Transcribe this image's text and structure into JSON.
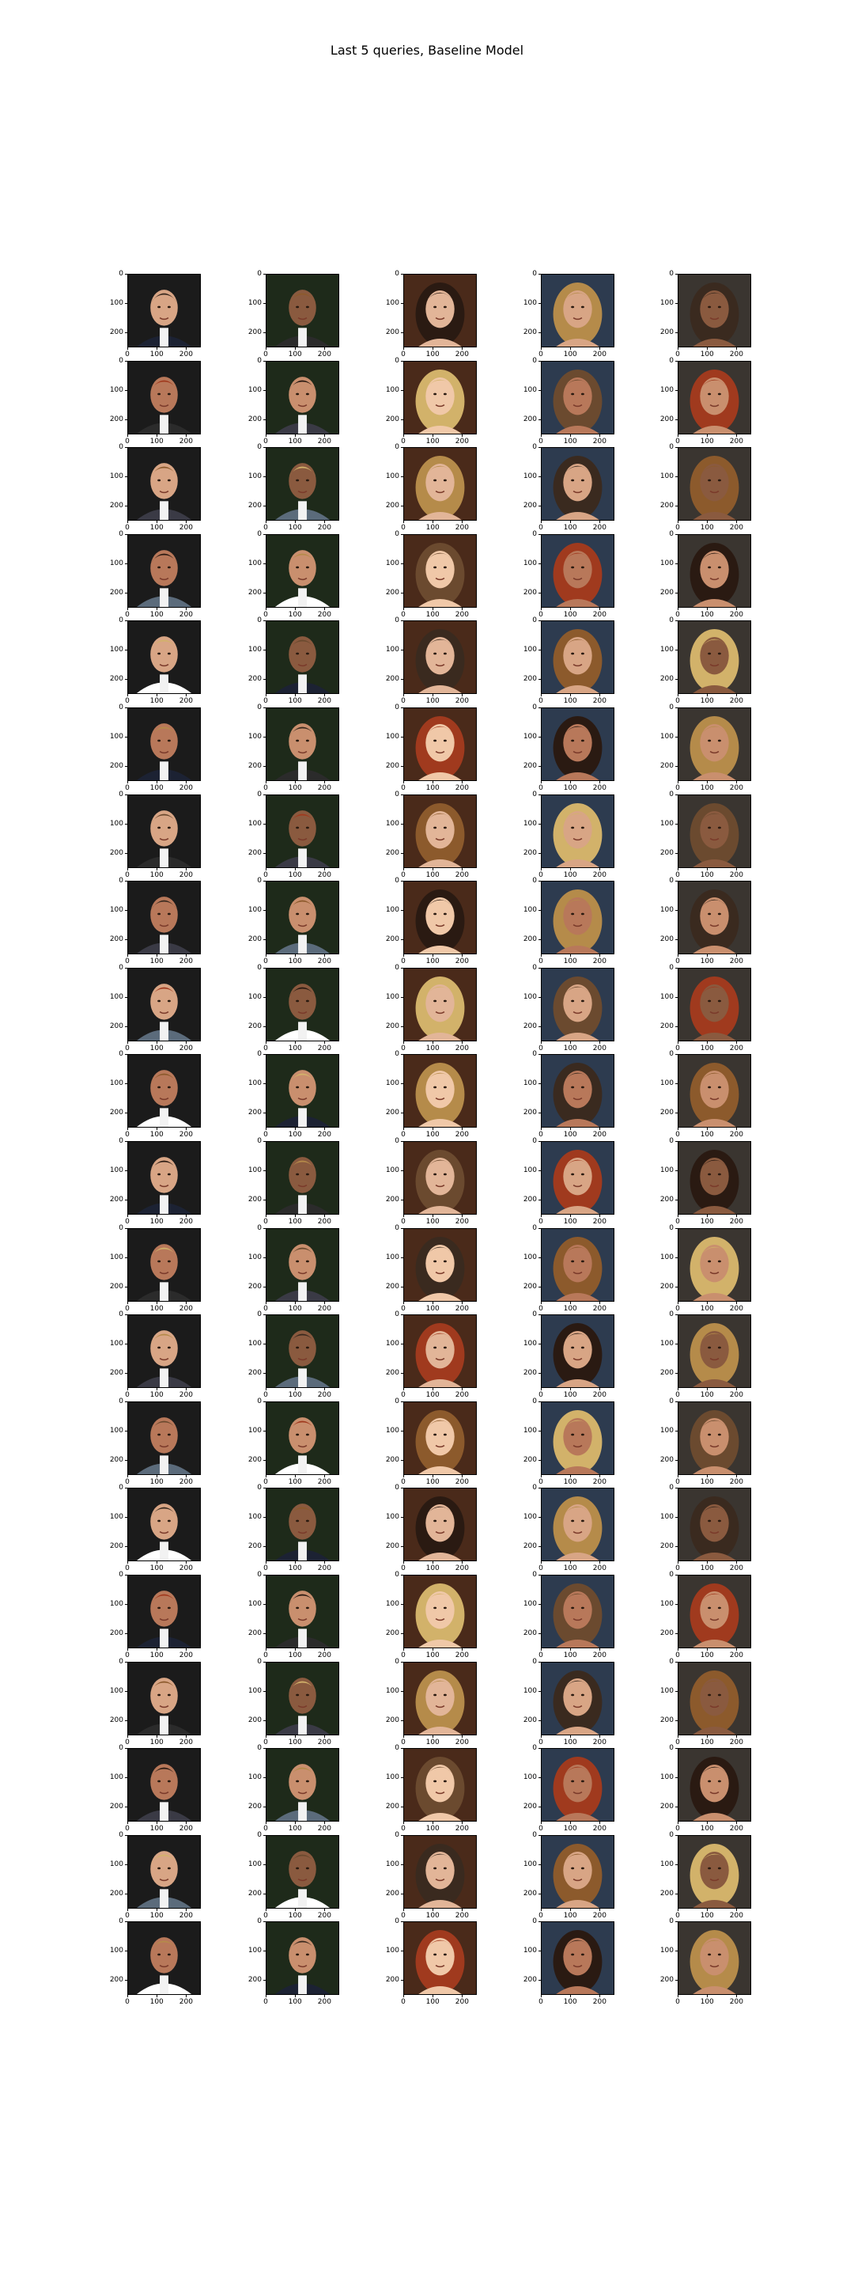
{
  "title": "Last 5 queries, Baseline Model",
  "chart_data": {
    "type": "image-grid",
    "title": "Last 5 queries, Baseline Model",
    "rows": 20,
    "cols": 5,
    "x_ticks": [
      "0",
      "100",
      "200"
    ],
    "y_ticks": [
      "0",
      "100",
      "200"
    ],
    "xlim": [
      0,
      250
    ],
    "ylim": [
      250,
      0
    ],
    "palette": {
      "skin": [
        "#d8a585",
        "#c98f6e",
        "#e2b598",
        "#b8785a",
        "#8a5a3f",
        "#f0c8a8"
      ],
      "hair": [
        "#3a2a1f",
        "#6b4a2f",
        "#b58b4a",
        "#d2b26a",
        "#2a1a12",
        "#8c5a2c",
        "#a03a1e"
      ],
      "bg": [
        "#1b1b1b",
        "#3a3530",
        "#6b5a3a",
        "#2d3b4f",
        "#8a7a5a",
        "#4a2a1a",
        "#c9b89a",
        "#1e2a1a",
        "#5a1a1a"
      ],
      "suit": [
        "#1c2233",
        "#2b2b2b",
        "#3a3a45",
        "#5b6b7b",
        "#ffffff"
      ]
    }
  }
}
